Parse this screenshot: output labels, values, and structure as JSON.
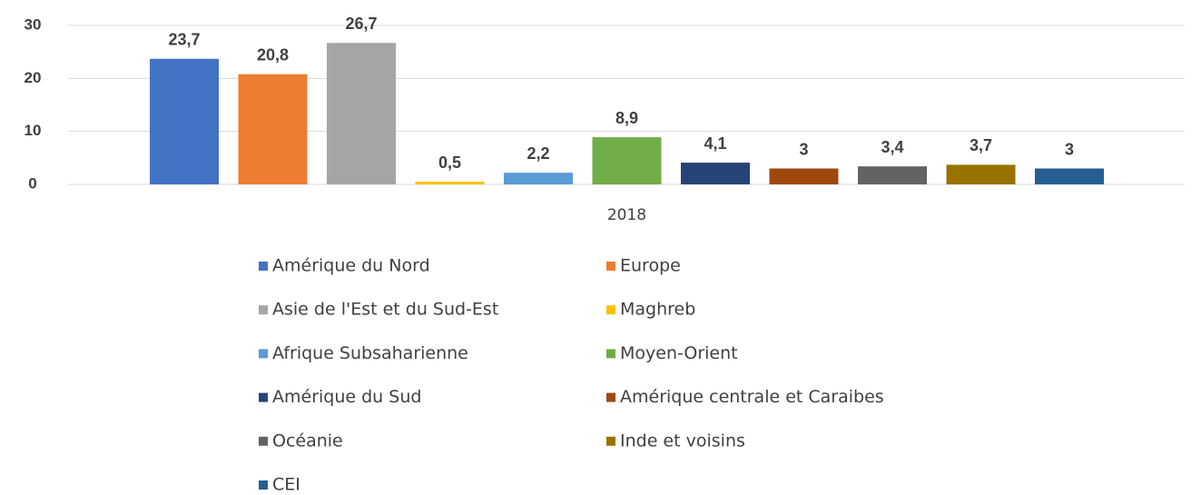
{
  "chart_data": {
    "type": "bar",
    "categories": [
      "2018"
    ],
    "series": [
      {
        "name": "Amérique du Nord",
        "color": "#4472c4",
        "values": [
          23.7
        ],
        "value_labels": [
          "23,7"
        ]
      },
      {
        "name": "Europe",
        "color": "#ed7d31",
        "values": [
          20.8
        ],
        "value_labels": [
          "20,8"
        ]
      },
      {
        "name": "Asie de l'Est et du Sud-Est",
        "color": "#a5a5a5",
        "values": [
          26.7
        ],
        "value_labels": [
          "26,7"
        ]
      },
      {
        "name": "Maghreb",
        "color": "#ffc000",
        "values": [
          0.5
        ],
        "value_labels": [
          "0,5"
        ]
      },
      {
        "name": "Afrique Subsaharienne",
        "color": "#5b9bd5",
        "values": [
          2.2
        ],
        "value_labels": [
          "2,2"
        ]
      },
      {
        "name": "Moyen-Orient",
        "color": "#70ad47",
        "values": [
          8.9
        ],
        "value_labels": [
          "8,9"
        ]
      },
      {
        "name": "Amérique du Sud",
        "color": "#264478",
        "values": [
          4.1
        ],
        "value_labels": [
          "4,1"
        ]
      },
      {
        "name": "Amérique centrale et Caraibes",
        "color": "#9e480e",
        "values": [
          3
        ],
        "value_labels": [
          "3"
        ]
      },
      {
        "name": "Océanie",
        "color": "#636363",
        "values": [
          3.4
        ],
        "value_labels": [
          "3,4"
        ]
      },
      {
        "name": "Inde et voisins",
        "color": "#997300",
        "values": [
          3.7
        ],
        "value_labels": [
          "3,7"
        ]
      },
      {
        "name": "CEI",
        "color": "#255e91",
        "values": [
          3
        ],
        "value_labels": [
          "3"
        ]
      }
    ],
    "ylim": [
      0,
      30
    ],
    "yticks": [
      0,
      10,
      20,
      30
    ],
    "grid": true,
    "legend": "bottom"
  }
}
